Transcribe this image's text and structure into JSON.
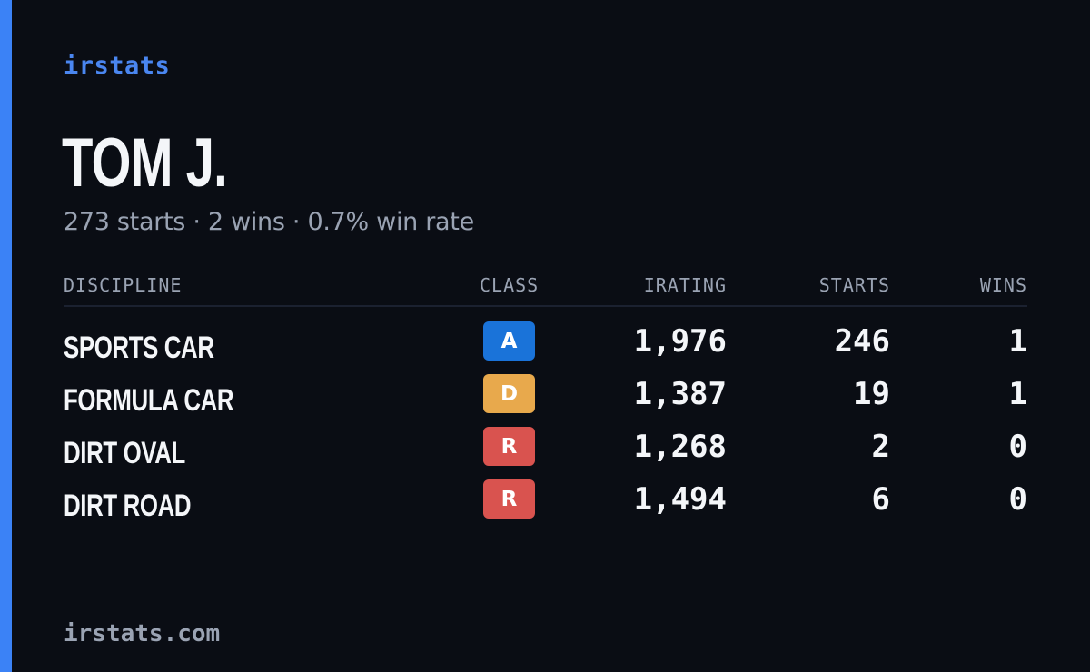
{
  "brand": "irstats",
  "driver": {
    "name": "TOM J.",
    "summary": "273 starts · 2 wins · 0.7% win rate"
  },
  "table": {
    "headers": {
      "discipline": "DISCIPLINE",
      "class": "CLASS",
      "irating": "IRATING",
      "starts": "STARTS",
      "wins": "WINS"
    },
    "rows": [
      {
        "discipline": "SPORTS CAR",
        "class": "A",
        "class_color": "#1a73d9",
        "irating": "1,976",
        "starts": "246",
        "wins": "1"
      },
      {
        "discipline": "FORMULA CAR",
        "class": "D",
        "class_color": "#e8a94c",
        "irating": "1,387",
        "starts": "19",
        "wins": "1"
      },
      {
        "discipline": "DIRT OVAL",
        "class": "R",
        "class_color": "#d9534f",
        "irating": "1,268",
        "starts": "2",
        "wins": "0"
      },
      {
        "discipline": "DIRT ROAD",
        "class": "R",
        "class_color": "#d9534f",
        "irating": "1,494",
        "starts": "6",
        "wins": "0"
      }
    ]
  },
  "footer": "irstats.com",
  "colors": {
    "background": "#0a0d14",
    "accent": "#3b82f6"
  }
}
